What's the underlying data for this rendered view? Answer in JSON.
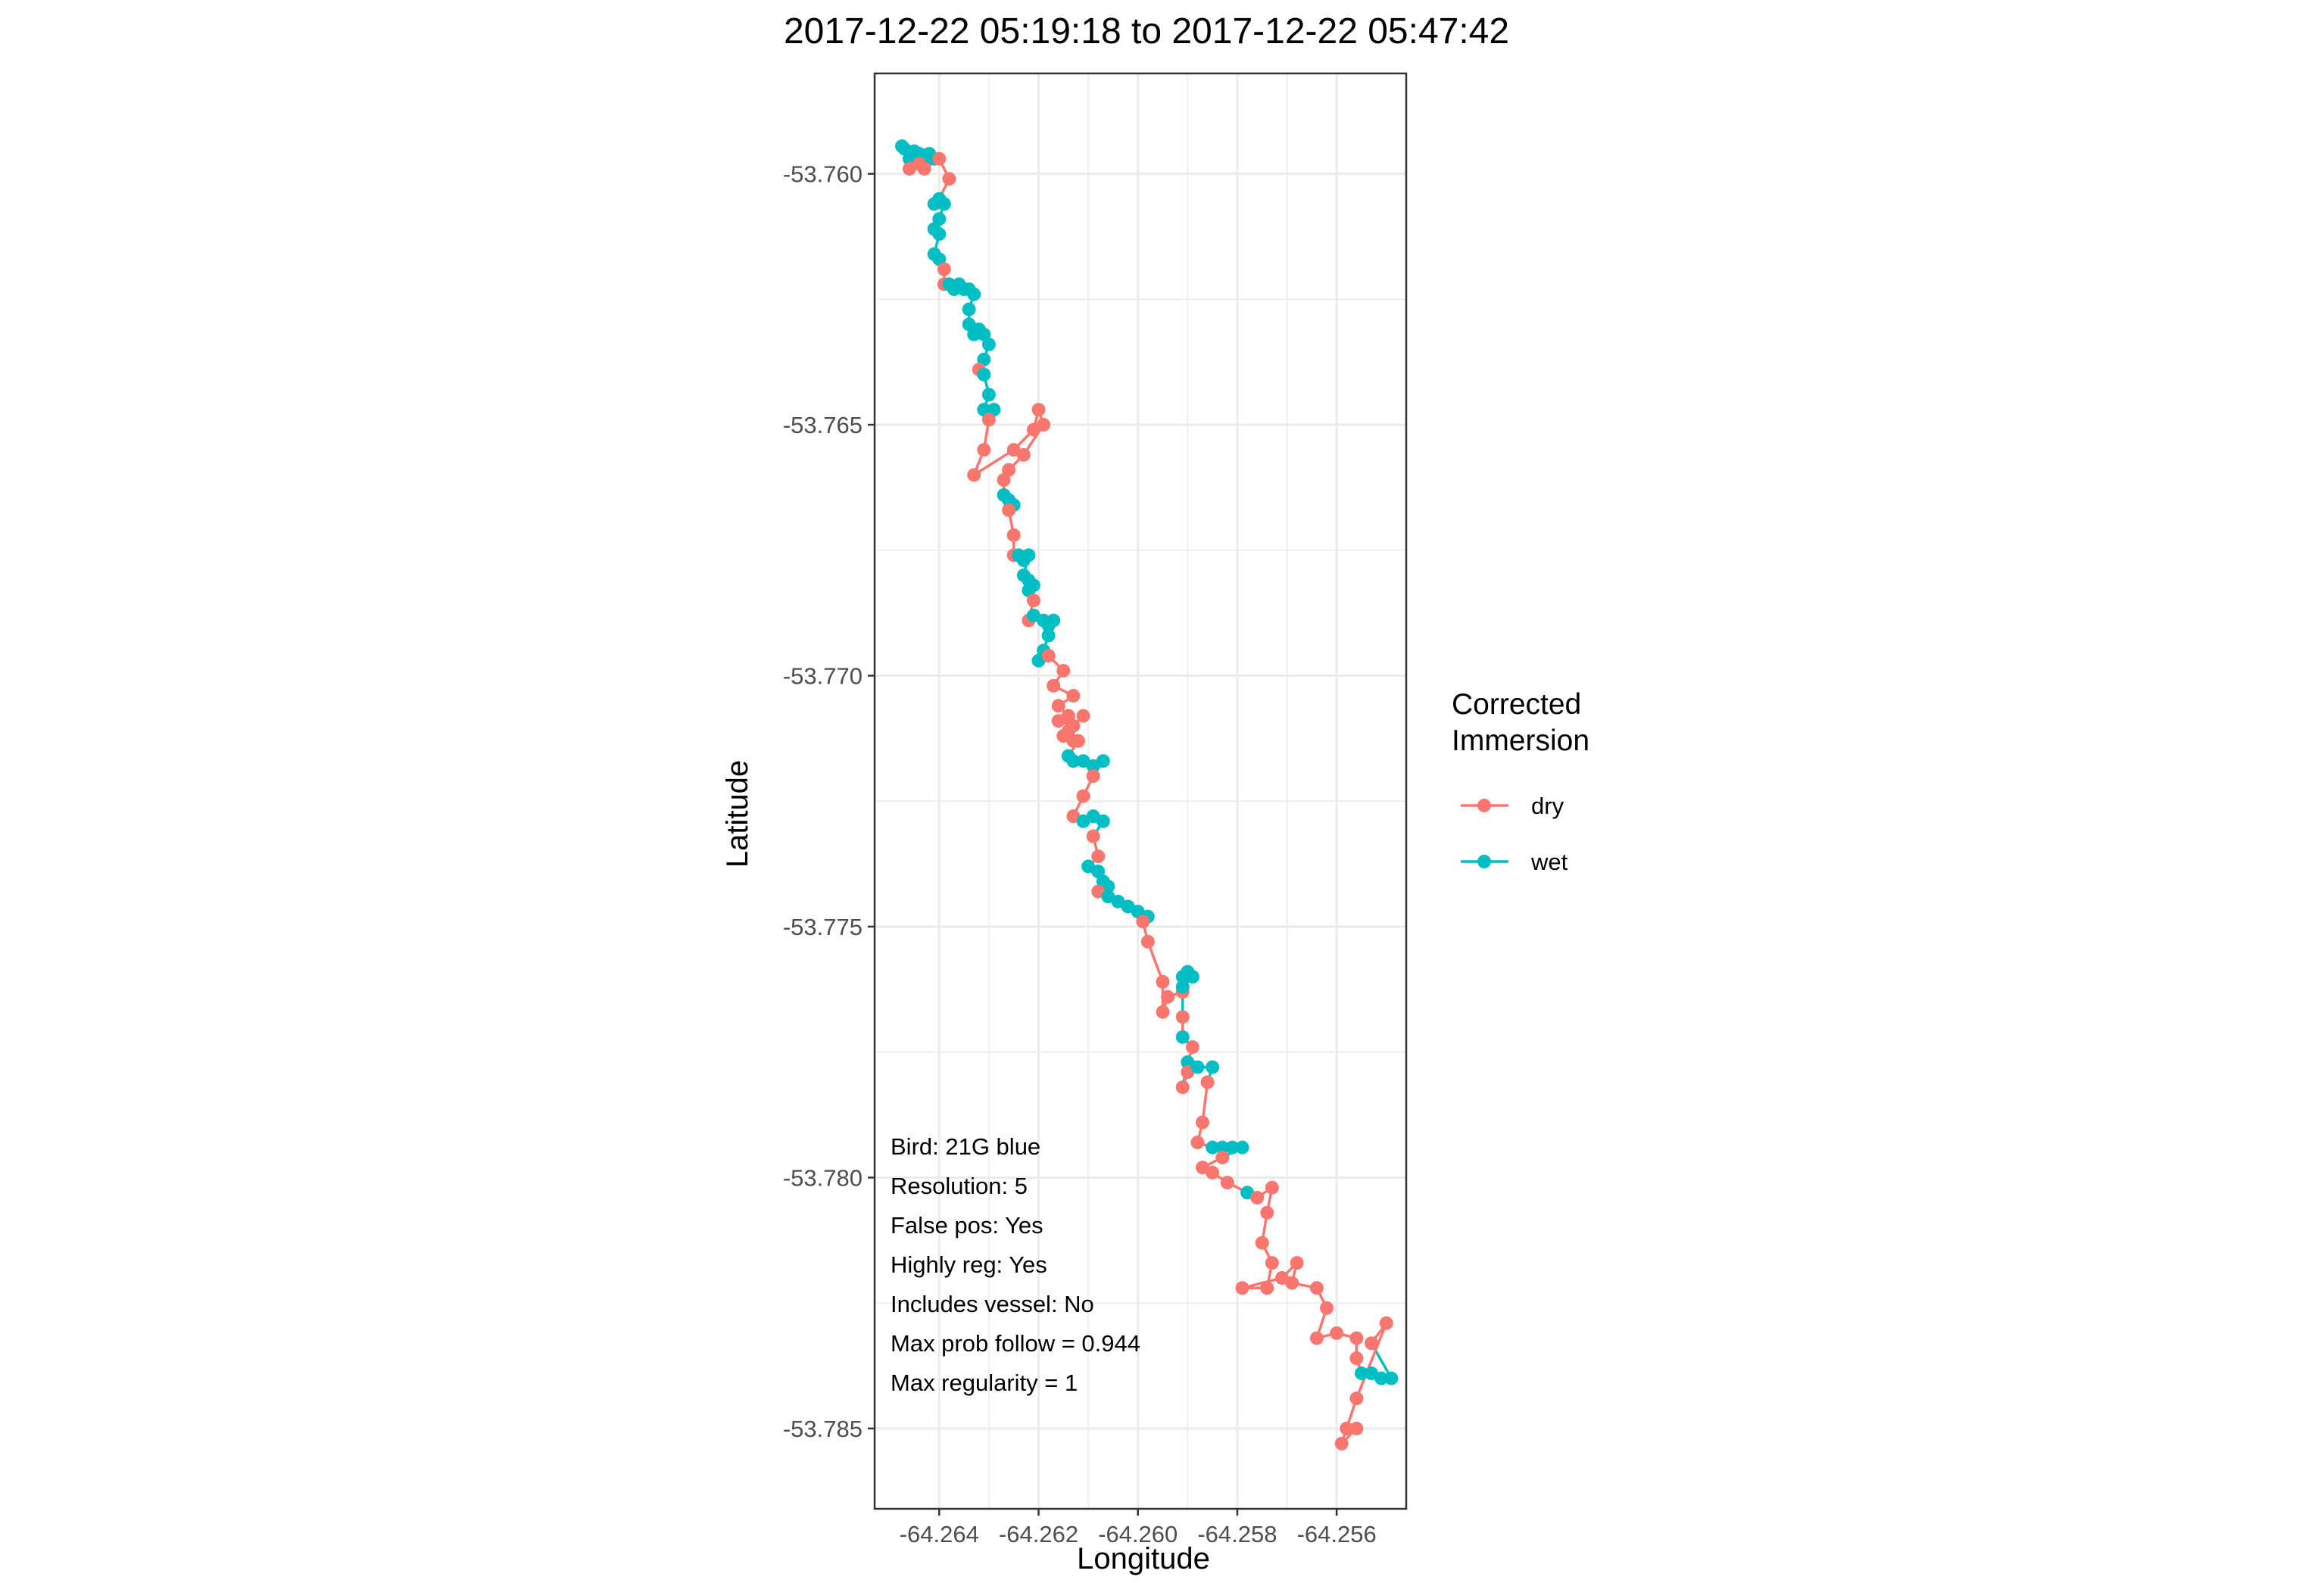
{
  "colors": {
    "dry": "#F8766D",
    "wet": "#00BFC4",
    "grid": "#EBEBEB",
    "panel_border": "#333333",
    "tick_text": "#4D4D4D",
    "text": "#000000"
  },
  "chart_data": {
    "type": "scatter",
    "title": "2017-12-22 05:19:18 to 2017-12-22 05:47:42",
    "xlabel": "Longitude",
    "ylabel": "Latitude",
    "xlim": [
      -64.2653,
      -64.2546
    ],
    "ylim": [
      -53.7866,
      -53.758
    ],
    "x_ticks": [
      -64.264,
      -64.262,
      -64.26,
      -64.258,
      -64.256
    ],
    "x_tick_labels": [
      "-64.264",
      "-64.262",
      "-64.260",
      "-64.258",
      "-64.256"
    ],
    "y_ticks": [
      -53.76,
      -53.765,
      -53.77,
      -53.775,
      -53.78,
      -53.785
    ],
    "y_tick_labels": [
      "-53.760",
      "-53.765",
      "-53.770",
      "-53.775",
      "-53.780",
      "-53.785"
    ],
    "grid": true,
    "legend": {
      "title": "Corrected\nImmersion",
      "title_lines": [
        "Corrected",
        "Immersion"
      ],
      "placement": "right",
      "entries": [
        {
          "label": "dry",
          "color": "#F8766D"
        },
        {
          "label": "wet",
          "color": "#00BFC4"
        }
      ]
    },
    "annotations": [
      "Bird: 21G blue",
      "Resolution: 5",
      "False pos: Yes",
      "Highly reg: Yes",
      "Includes vessel: No",
      "Max prob follow = 0.944",
      "Max regularity = 1"
    ],
    "track": [
      {
        "x": -64.26475,
        "y": -53.75945,
        "s": "wet"
      },
      {
        "x": -64.2647,
        "y": -53.7595,
        "s": "wet"
      },
      {
        "x": -64.2646,
        "y": -53.7597,
        "s": "wet"
      },
      {
        "x": -64.2645,
        "y": -53.75955,
        "s": "wet"
      },
      {
        "x": -64.2644,
        "y": -53.7596,
        "s": "wet"
      },
      {
        "x": -64.2643,
        "y": -53.7597,
        "s": "wet"
      },
      {
        "x": -64.2642,
        "y": -53.7596,
        "s": "wet"
      },
      {
        "x": -64.2641,
        "y": -53.7597,
        "s": "wet"
      },
      {
        "x": -64.2644,
        "y": -53.7598,
        "s": "dry"
      },
      {
        "x": -64.2646,
        "y": -53.7599,
        "s": "dry"
      },
      {
        "x": -64.2643,
        "y": -53.7599,
        "s": "dry"
      },
      {
        "x": -64.264,
        "y": -53.7597,
        "s": "dry"
      },
      {
        "x": -64.2638,
        "y": -53.7601,
        "s": "dry"
      },
      {
        "x": -64.264,
        "y": -53.7605,
        "s": "wet"
      },
      {
        "x": -64.2641,
        "y": -53.7606,
        "s": "wet"
      },
      {
        "x": -64.2639,
        "y": -53.7606,
        "s": "wet"
      },
      {
        "x": -64.264,
        "y": -53.7609,
        "s": "wet"
      },
      {
        "x": -64.2641,
        "y": -53.7611,
        "s": "wet"
      },
      {
        "x": -64.264,
        "y": -53.7612,
        "s": "wet"
      },
      {
        "x": -64.2641,
        "y": -53.7616,
        "s": "wet"
      },
      {
        "x": -64.264,
        "y": -53.7617,
        "s": "wet"
      },
      {
        "x": -64.2639,
        "y": -53.7619,
        "s": "dry"
      },
      {
        "x": -64.2639,
        "y": -53.7622,
        "s": "dry"
      },
      {
        "x": -64.2638,
        "y": -53.7622,
        "s": "wet"
      },
      {
        "x": -64.2637,
        "y": -53.7623,
        "s": "wet"
      },
      {
        "x": -64.2636,
        "y": -53.7622,
        "s": "wet"
      },
      {
        "x": -64.2635,
        "y": -53.7623,
        "s": "wet"
      },
      {
        "x": -64.2634,
        "y": -53.7623,
        "s": "wet"
      },
      {
        "x": -64.2633,
        "y": -53.7624,
        "s": "wet"
      },
      {
        "x": -64.2634,
        "y": -53.7627,
        "s": "wet"
      },
      {
        "x": -64.2634,
        "y": -53.763,
        "s": "wet"
      },
      {
        "x": -64.2632,
        "y": -53.7631,
        "s": "wet"
      },
      {
        "x": -64.2633,
        "y": -53.7632,
        "s": "wet"
      },
      {
        "x": -64.2631,
        "y": -53.7632,
        "s": "wet"
      },
      {
        "x": -64.263,
        "y": -53.7634,
        "s": "wet"
      },
      {
        "x": -64.2631,
        "y": -53.7637,
        "s": "wet"
      },
      {
        "x": -64.2632,
        "y": -53.7639,
        "s": "dry"
      },
      {
        "x": -64.2631,
        "y": -53.764,
        "s": "wet"
      },
      {
        "x": -64.263,
        "y": -53.7644,
        "s": "wet"
      },
      {
        "x": -64.2631,
        "y": -53.7647,
        "s": "wet"
      },
      {
        "x": -64.263,
        "y": -53.7648,
        "s": "wet"
      },
      {
        "x": -64.2629,
        "y": -53.7647,
        "s": "wet"
      },
      {
        "x": -64.263,
        "y": -53.7649,
        "s": "dry"
      },
      {
        "x": -64.2631,
        "y": -53.7655,
        "s": "dry"
      },
      {
        "x": -64.2633,
        "y": -53.766,
        "s": "dry"
      },
      {
        "x": -64.2625,
        "y": -53.7655,
        "s": "dry"
      },
      {
        "x": -64.2621,
        "y": -53.7651,
        "s": "dry"
      },
      {
        "x": -64.262,
        "y": -53.7647,
        "s": "dry"
      },
      {
        "x": -64.2619,
        "y": -53.765,
        "s": "dry"
      },
      {
        "x": -64.2623,
        "y": -53.7656,
        "s": "dry"
      },
      {
        "x": -64.2626,
        "y": -53.7659,
        "s": "dry"
      },
      {
        "x": -64.2627,
        "y": -53.7661,
        "s": "dry"
      },
      {
        "x": -64.2627,
        "y": -53.7664,
        "s": "wet"
      },
      {
        "x": -64.2626,
        "y": -53.7665,
        "s": "wet"
      },
      {
        "x": -64.2625,
        "y": -53.7666,
        "s": "wet"
      },
      {
        "x": -64.2626,
        "y": -53.7667,
        "s": "dry"
      },
      {
        "x": -64.2625,
        "y": -53.7672,
        "s": "dry"
      },
      {
        "x": -64.2625,
        "y": -53.7676,
        "s": "dry"
      },
      {
        "x": -64.2624,
        "y": -53.7676,
        "s": "wet"
      },
      {
        "x": -64.2623,
        "y": -53.7677,
        "s": "wet"
      },
      {
        "x": -64.2622,
        "y": -53.7676,
        "s": "wet"
      },
      {
        "x": -64.2623,
        "y": -53.768,
        "s": "wet"
      },
      {
        "x": -64.2622,
        "y": -53.7681,
        "s": "wet"
      },
      {
        "x": -64.2621,
        "y": -53.7682,
        "s": "wet"
      },
      {
        "x": -64.2622,
        "y": -53.7683,
        "s": "wet"
      },
      {
        "x": -64.2621,
        "y": -53.7685,
        "s": "dry"
      },
      {
        "x": -64.2622,
        "y": -53.7689,
        "s": "dry"
      },
      {
        "x": -64.2621,
        "y": -53.7688,
        "s": "wet"
      },
      {
        "x": -64.2619,
        "y": -53.7689,
        "s": "wet"
      },
      {
        "x": -64.2618,
        "y": -53.769,
        "s": "wet"
      },
      {
        "x": -64.2617,
        "y": -53.7689,
        "s": "wet"
      },
      {
        "x": -64.2618,
        "y": -53.7692,
        "s": "wet"
      },
      {
        "x": -64.2619,
        "y": -53.7695,
        "s": "wet"
      },
      {
        "x": -64.262,
        "y": -53.7697,
        "s": "wet"
      },
      {
        "x": -64.2618,
        "y": -53.7696,
        "s": "dry"
      },
      {
        "x": -64.2615,
        "y": -53.7699,
        "s": "dry"
      },
      {
        "x": -64.2617,
        "y": -53.7702,
        "s": "dry"
      },
      {
        "x": -64.2613,
        "y": -53.7704,
        "s": "dry"
      },
      {
        "x": -64.2616,
        "y": -53.7706,
        "s": "dry"
      },
      {
        "x": -64.2614,
        "y": -53.7708,
        "s": "dry"
      },
      {
        "x": -64.2616,
        "y": -53.7709,
        "s": "dry"
      },
      {
        "x": -64.2613,
        "y": -53.771,
        "s": "dry"
      },
      {
        "x": -64.2611,
        "y": -53.7708,
        "s": "dry"
      },
      {
        "x": -64.2614,
        "y": -53.7711,
        "s": "dry"
      },
      {
        "x": -64.2613,
        "y": -53.7713,
        "s": "dry"
      },
      {
        "x": -64.2615,
        "y": -53.7712,
        "s": "dry"
      },
      {
        "x": -64.2612,
        "y": -53.7713,
        "s": "dry"
      },
      {
        "x": -64.2614,
        "y": -53.7716,
        "s": "wet"
      },
      {
        "x": -64.2613,
        "y": -53.7717,
        "s": "wet"
      },
      {
        "x": -64.2611,
        "y": -53.7717,
        "s": "wet"
      },
      {
        "x": -64.2609,
        "y": -53.7718,
        "s": "wet"
      },
      {
        "x": -64.2607,
        "y": -53.7717,
        "s": "wet"
      },
      {
        "x": -64.2609,
        "y": -53.772,
        "s": "dry"
      },
      {
        "x": -64.2611,
        "y": -53.7724,
        "s": "dry"
      },
      {
        "x": -64.2613,
        "y": -53.7728,
        "s": "dry"
      },
      {
        "x": -64.2611,
        "y": -53.7729,
        "s": "wet"
      },
      {
        "x": -64.2609,
        "y": -53.7728,
        "s": "wet"
      },
      {
        "x": -64.2607,
        "y": -53.7729,
        "s": "wet"
      },
      {
        "x": -64.2609,
        "y": -53.7732,
        "s": "dry"
      },
      {
        "x": -64.2608,
        "y": -53.7736,
        "s": "dry"
      },
      {
        "x": -64.261,
        "y": -53.7738,
        "s": "wet"
      },
      {
        "x": -64.2608,
        "y": -53.7739,
        "s": "wet"
      },
      {
        "x": -64.2607,
        "y": -53.7741,
        "s": "wet"
      },
      {
        "x": -64.2606,
        "y": -53.7742,
        "s": "wet"
      },
      {
        "x": -64.2608,
        "y": -53.7743,
        "s": "dry"
      },
      {
        "x": -64.2606,
        "y": -53.7744,
        "s": "wet"
      },
      {
        "x": -64.2604,
        "y": -53.7745,
        "s": "wet"
      },
      {
        "x": -64.2602,
        "y": -53.7746,
        "s": "wet"
      },
      {
        "x": -64.26,
        "y": -53.7747,
        "s": "wet"
      },
      {
        "x": -64.2598,
        "y": -53.7748,
        "s": "wet"
      },
      {
        "x": -64.2599,
        "y": -53.7749,
        "s": "dry"
      },
      {
        "x": -64.2598,
        "y": -53.7753,
        "s": "dry"
      },
      {
        "x": -64.2595,
        "y": -53.7761,
        "s": "dry"
      },
      {
        "x": -64.2595,
        "y": -53.7767,
        "s": "dry"
      },
      {
        "x": -64.2594,
        "y": -53.7764,
        "s": "dry"
      },
      {
        "x": -64.2591,
        "y": -53.7763,
        "s": "dry"
      },
      {
        "x": -64.2591,
        "y": -53.776,
        "s": "wet"
      },
      {
        "x": -64.259,
        "y": -53.7759,
        "s": "wet"
      },
      {
        "x": -64.2589,
        "y": -53.776,
        "s": "wet"
      },
      {
        "x": -64.2591,
        "y": -53.7762,
        "s": "wet"
      },
      {
        "x": -64.2591,
        "y": -53.7768,
        "s": "dry"
      },
      {
        "x": -64.2591,
        "y": -53.7772,
        "s": "wet"
      },
      {
        "x": -64.2589,
        "y": -53.7774,
        "s": "dry"
      },
      {
        "x": -64.259,
        "y": -53.7777,
        "s": "wet"
      },
      {
        "x": -64.2591,
        "y": -53.7782,
        "s": "dry"
      },
      {
        "x": -64.259,
        "y": -53.7779,
        "s": "dry"
      },
      {
        "x": -64.2588,
        "y": -53.7778,
        "s": "wet"
      },
      {
        "x": -64.2585,
        "y": -53.7778,
        "s": "wet"
      },
      {
        "x": -64.2586,
        "y": -53.7781,
        "s": "dry"
      },
      {
        "x": -64.2587,
        "y": -53.7789,
        "s": "dry"
      },
      {
        "x": -64.2588,
        "y": -53.7793,
        "s": "dry"
      },
      {
        "x": -64.2585,
        "y": -53.7794,
        "s": "wet"
      },
      {
        "x": -64.2583,
        "y": -53.7794,
        "s": "wet"
      },
      {
        "x": -64.2581,
        "y": -53.7794,
        "s": "wet"
      },
      {
        "x": -64.2579,
        "y": -53.7794,
        "s": "wet"
      },
      {
        "x": -64.2583,
        "y": -53.7796,
        "s": "dry"
      },
      {
        "x": -64.2587,
        "y": -53.7798,
        "s": "dry"
      },
      {
        "x": -64.2585,
        "y": -53.7799,
        "s": "dry"
      },
      {
        "x": -64.2582,
        "y": -53.7801,
        "s": "dry"
      },
      {
        "x": -64.2578,
        "y": -53.7803,
        "s": "wet"
      },
      {
        "x": -64.2576,
        "y": -53.7804,
        "s": "dry"
      },
      {
        "x": -64.2573,
        "y": -53.7802,
        "s": "dry"
      },
      {
        "x": -64.2574,
        "y": -53.7807,
        "s": "dry"
      },
      {
        "x": -64.2575,
        "y": -53.7813,
        "s": "dry"
      },
      {
        "x": -64.2573,
        "y": -53.7817,
        "s": "dry"
      },
      {
        "x": -64.2574,
        "y": -53.7822,
        "s": "dry"
      },
      {
        "x": -64.2579,
        "y": -53.7822,
        "s": "dry"
      },
      {
        "x": -64.2571,
        "y": -53.782,
        "s": "dry"
      },
      {
        "x": -64.2568,
        "y": -53.7817,
        "s": "dry"
      },
      {
        "x": -64.2569,
        "y": -53.7821,
        "s": "dry"
      },
      {
        "x": -64.2564,
        "y": -53.7822,
        "s": "dry"
      },
      {
        "x": -64.2562,
        "y": -53.7826,
        "s": "dry"
      },
      {
        "x": -64.2564,
        "y": -53.7832,
        "s": "dry"
      },
      {
        "x": -64.256,
        "y": -53.7831,
        "s": "dry"
      },
      {
        "x": -64.2556,
        "y": -53.7832,
        "s": "dry"
      },
      {
        "x": -64.2556,
        "y": -53.7836,
        "s": "dry"
      },
      {
        "x": -64.2555,
        "y": -53.7839,
        "s": "wet"
      },
      {
        "x": -64.2553,
        "y": -53.7839,
        "s": "wet"
      },
      {
        "x": -64.2551,
        "y": -53.784,
        "s": "wet"
      },
      {
        "x": -64.2549,
        "y": -53.784,
        "s": "wet"
      },
      {
        "x": -64.2553,
        "y": -53.7833,
        "s": "dry"
      },
      {
        "x": -64.255,
        "y": -53.7829,
        "s": "dry"
      },
      {
        "x": -64.2556,
        "y": -53.7844,
        "s": "dry"
      },
      {
        "x": -64.2558,
        "y": -53.785,
        "s": "dry"
      },
      {
        "x": -64.2559,
        "y": -53.7853,
        "s": "dry"
      },
      {
        "x": -64.2556,
        "y": -53.785,
        "s": "dry"
      }
    ]
  }
}
